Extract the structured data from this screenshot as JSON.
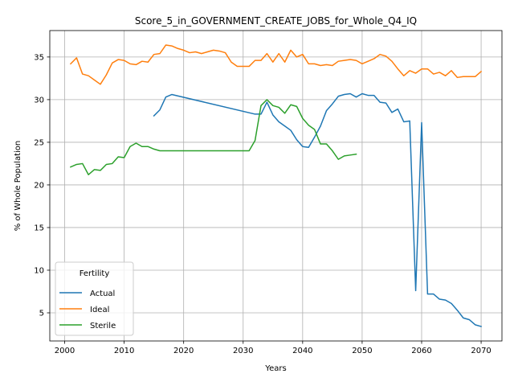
{
  "chart_data": {
    "type": "line",
    "title": "Score_5_in_GOVERNMENT_CREATE_JOBS_for_Whole_Q4_IQ",
    "xlabel": "Years",
    "ylabel": "% of Whole Population",
    "xlim": [
      1997.5,
      2073.5
    ],
    "ylim": [
      1.7,
      38.1
    ],
    "xticks": [
      2000,
      2010,
      2020,
      2030,
      2040,
      2050,
      2060,
      2070
    ],
    "yticks": [
      5,
      10,
      15,
      20,
      25,
      30,
      35
    ],
    "grid": true,
    "legend": {
      "title": "Fertility",
      "placement": "lower-left"
    },
    "series": [
      {
        "name": "Actual",
        "color": "#1f77b4",
        "points": [
          [
            2015,
            28.1
          ],
          [
            2016,
            28.8
          ],
          [
            2017,
            30.3
          ],
          [
            2018,
            30.6
          ],
          [
            2032,
            28.3
          ],
          [
            2033,
            28.3
          ],
          [
            2034,
            29.7
          ],
          [
            2035,
            28.2
          ],
          [
            2036,
            27.4
          ],
          [
            2037,
            26.9
          ],
          [
            2038,
            26.4
          ],
          [
            2039,
            25.3
          ],
          [
            2040,
            24.5
          ],
          [
            2041,
            24.4
          ],
          [
            2042,
            25.6
          ],
          [
            2043,
            26.9
          ],
          [
            2044,
            28.7
          ],
          [
            2045,
            29.5
          ],
          [
            2046,
            30.4
          ],
          [
            2047,
            30.6
          ],
          [
            2048,
            30.7
          ],
          [
            2049,
            30.3
          ],
          [
            2050,
            30.7
          ],
          [
            2051,
            30.5
          ],
          [
            2052,
            30.5
          ],
          [
            2053,
            29.7
          ],
          [
            2054,
            29.6
          ],
          [
            2055,
            28.5
          ],
          [
            2056,
            28.9
          ],
          [
            2057,
            27.4
          ],
          [
            2058,
            27.5
          ],
          [
            2059,
            7.6
          ],
          [
            2060,
            27.3
          ],
          [
            2061,
            7.2
          ],
          [
            2062,
            7.2
          ],
          [
            2063,
            6.6
          ],
          [
            2064,
            6.5
          ],
          [
            2065,
            6.1
          ],
          [
            2066,
            5.3
          ],
          [
            2067,
            4.4
          ],
          [
            2068,
            4.2
          ],
          [
            2069,
            3.6
          ],
          [
            2070,
            3.4
          ]
        ]
      },
      {
        "name": "Ideal",
        "color": "#ff7f0e",
        "points": [
          [
            2001,
            34.2
          ],
          [
            2002,
            34.9
          ],
          [
            2003,
            33.0
          ],
          [
            2004,
            32.8
          ],
          [
            2005,
            32.3
          ],
          [
            2006,
            31.8
          ],
          [
            2007,
            32.9
          ],
          [
            2008,
            34.3
          ],
          [
            2009,
            34.7
          ],
          [
            2010,
            34.6
          ],
          [
            2011,
            34.2
          ],
          [
            2012,
            34.1
          ],
          [
            2013,
            34.5
          ],
          [
            2014,
            34.4
          ],
          [
            2015,
            35.3
          ],
          [
            2016,
            35.4
          ],
          [
            2017,
            36.4
          ],
          [
            2018,
            36.3
          ],
          [
            2019,
            36.0
          ],
          [
            2020,
            35.8
          ],
          [
            2021,
            35.5
          ],
          [
            2022,
            35.6
          ],
          [
            2023,
            35.4
          ],
          [
            2024,
            35.6
          ],
          [
            2025,
            35.8
          ],
          [
            2026,
            35.7
          ],
          [
            2027,
            35.5
          ],
          [
            2028,
            34.4
          ],
          [
            2029,
            33.9
          ],
          [
            2030,
            33.9
          ],
          [
            2031,
            33.9
          ],
          [
            2032,
            34.6
          ],
          [
            2033,
            34.6
          ],
          [
            2034,
            35.4
          ],
          [
            2035,
            34.4
          ],
          [
            2036,
            35.4
          ],
          [
            2037,
            34.4
          ],
          [
            2038,
            35.8
          ],
          [
            2039,
            35.0
          ],
          [
            2040,
            35.3
          ],
          [
            2041,
            34.2
          ],
          [
            2042,
            34.2
          ],
          [
            2043,
            34.0
          ],
          [
            2044,
            34.1
          ],
          [
            2045,
            34.0
          ],
          [
            2046,
            34.5
          ],
          [
            2047,
            34.6
          ],
          [
            2048,
            34.7
          ],
          [
            2049,
            34.6
          ],
          [
            2050,
            34.2
          ],
          [
            2051,
            34.5
          ],
          [
            2052,
            34.8
          ],
          [
            2053,
            35.3
          ],
          [
            2054,
            35.1
          ],
          [
            2055,
            34.5
          ],
          [
            2056,
            33.6
          ],
          [
            2057,
            32.8
          ],
          [
            2058,
            33.4
          ],
          [
            2059,
            33.1
          ],
          [
            2060,
            33.6
          ],
          [
            2061,
            33.6
          ],
          [
            2062,
            33.0
          ],
          [
            2063,
            33.2
          ],
          [
            2064,
            32.8
          ],
          [
            2065,
            33.4
          ],
          [
            2066,
            32.6
          ],
          [
            2067,
            32.7
          ],
          [
            2068,
            32.7
          ],
          [
            2069,
            32.7
          ],
          [
            2070,
            33.3
          ]
        ]
      },
      {
        "name": "Sterile",
        "color": "#2ca02c",
        "points": [
          [
            2001,
            22.1
          ],
          [
            2002,
            22.4
          ],
          [
            2003,
            22.5
          ],
          [
            2004,
            21.2
          ],
          [
            2005,
            21.8
          ],
          [
            2006,
            21.7
          ],
          [
            2007,
            22.4
          ],
          [
            2008,
            22.5
          ],
          [
            2009,
            23.3
          ],
          [
            2010,
            23.2
          ],
          [
            2011,
            24.5
          ],
          [
            2012,
            24.9
          ],
          [
            2013,
            24.5
          ],
          [
            2014,
            24.5
          ],
          [
            2015,
            24.2
          ],
          [
            2016,
            24.0
          ],
          [
            2017,
            24.0
          ],
          [
            2018,
            24.0
          ],
          [
            2019,
            24.0
          ],
          [
            2020,
            24.0
          ],
          [
            2021,
            24.0
          ],
          [
            2022,
            24.0
          ],
          [
            2023,
            24.0
          ],
          [
            2024,
            24.0
          ],
          [
            2025,
            24.0
          ],
          [
            2026,
            24.0
          ],
          [
            2027,
            24.0
          ],
          [
            2028,
            24.0
          ],
          [
            2029,
            24.0
          ],
          [
            2030,
            24.0
          ],
          [
            2031,
            24.0
          ],
          [
            2032,
            25.2
          ],
          [
            2033,
            29.3
          ],
          [
            2034,
            30.0
          ],
          [
            2035,
            29.3
          ],
          [
            2036,
            29.1
          ],
          [
            2037,
            28.4
          ],
          [
            2038,
            29.4
          ],
          [
            2039,
            29.2
          ],
          [
            2040,
            27.8
          ],
          [
            2041,
            27.0
          ],
          [
            2042,
            26.5
          ],
          [
            2043,
            24.8
          ],
          [
            2044,
            24.8
          ],
          [
            2045,
            24.0
          ],
          [
            2046,
            23.0
          ],
          [
            2047,
            23.4
          ],
          [
            2048,
            23.5
          ],
          [
            2049,
            23.6
          ]
        ]
      }
    ]
  }
}
